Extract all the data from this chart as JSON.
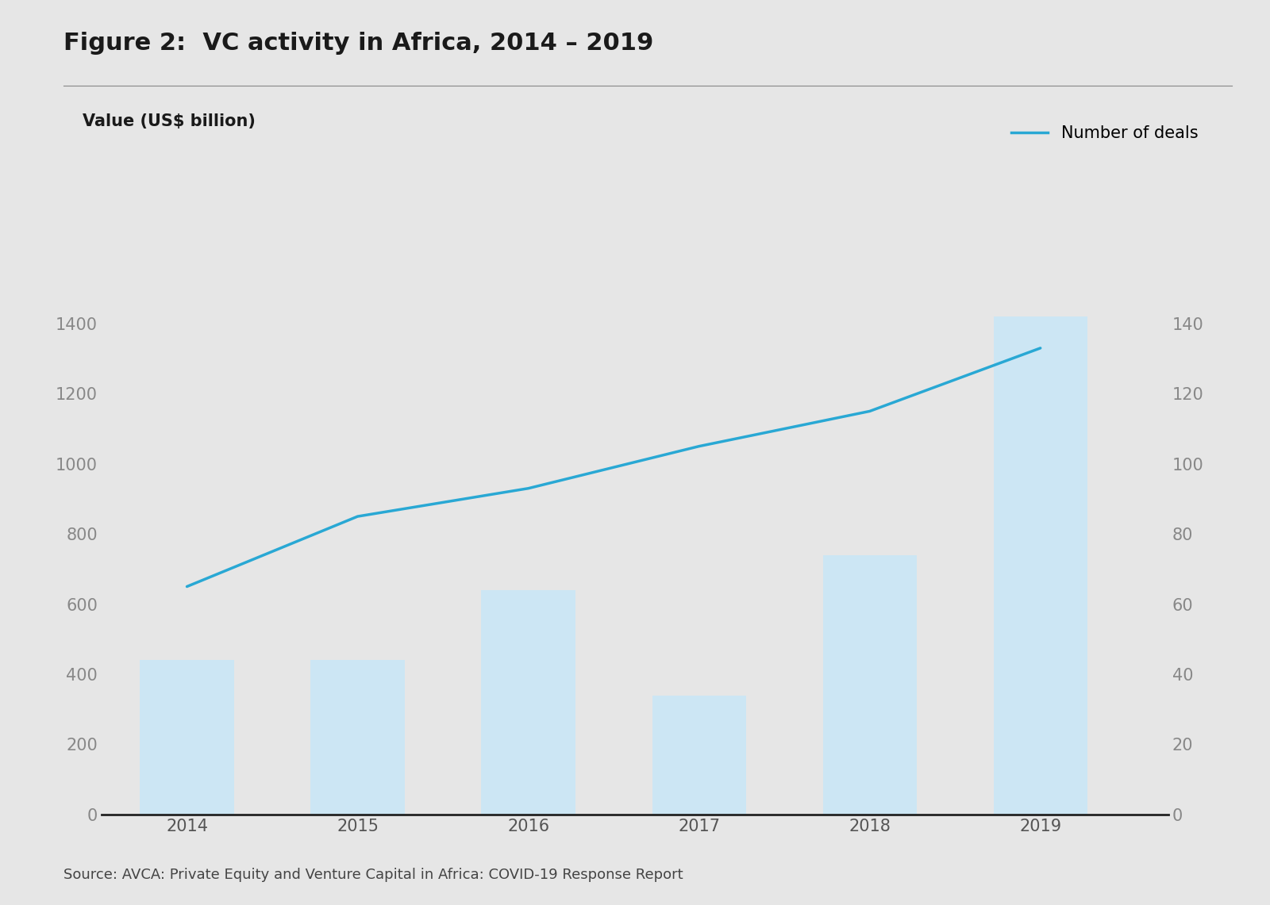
{
  "title": "Figure 2:  VC activity in Africa, 2014 – 2019",
  "ylabel_left": "Value (US$ billion)",
  "ylabel_right": "Number of deals",
  "source_text": "Source: AVCA: Private Equity and Venture Capital in Africa: COVID-19 Response Report",
  "years": [
    2014,
    2015,
    2016,
    2017,
    2018,
    2019
  ],
  "bar_values": [
    440,
    440,
    640,
    340,
    740,
    1420
  ],
  "line_values": [
    65,
    85,
    93,
    105,
    115,
    133
  ],
  "bar_color": "#cce6f4",
  "line_color": "#29a8d4",
  "background_color": "#e6e6e6",
  "ylim_left": [
    0,
    1600
  ],
  "ylim_right": [
    0,
    160
  ],
  "yticks_left": [
    0,
    200,
    400,
    600,
    800,
    1000,
    1200,
    1400
  ],
  "yticks_right": [
    0,
    20,
    40,
    60,
    80,
    100,
    120,
    140
  ],
  "title_fontsize": 22,
  "label_fontsize": 15,
  "tick_fontsize": 15,
  "source_fontsize": 13,
  "legend_fontsize": 15,
  "bar_width": 0.55
}
